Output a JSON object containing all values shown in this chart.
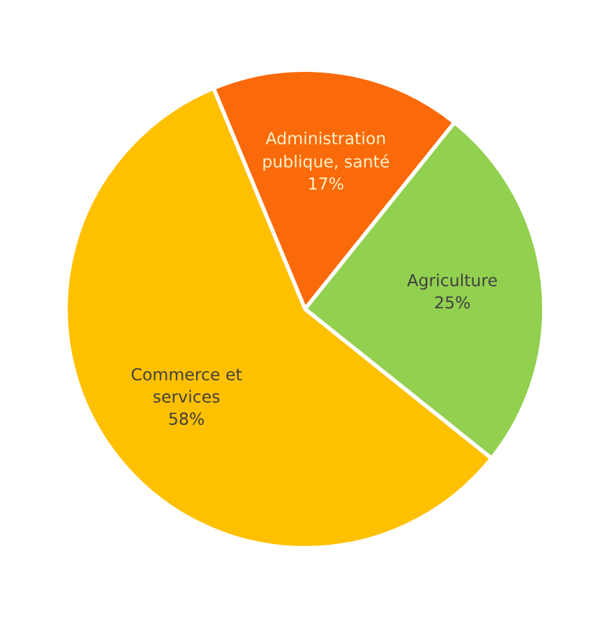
{
  "chart_data": {
    "type": "pie",
    "categories": [
      "Administration\npublique, santé",
      "Agriculture",
      "Commerce et\nservices"
    ],
    "values": [
      17,
      25,
      58
    ],
    "colors": [
      "#fa6a0a",
      "#92d050",
      "#ffc000"
    ],
    "value_labels": [
      "17%",
      "25%",
      "58%"
    ]
  }
}
